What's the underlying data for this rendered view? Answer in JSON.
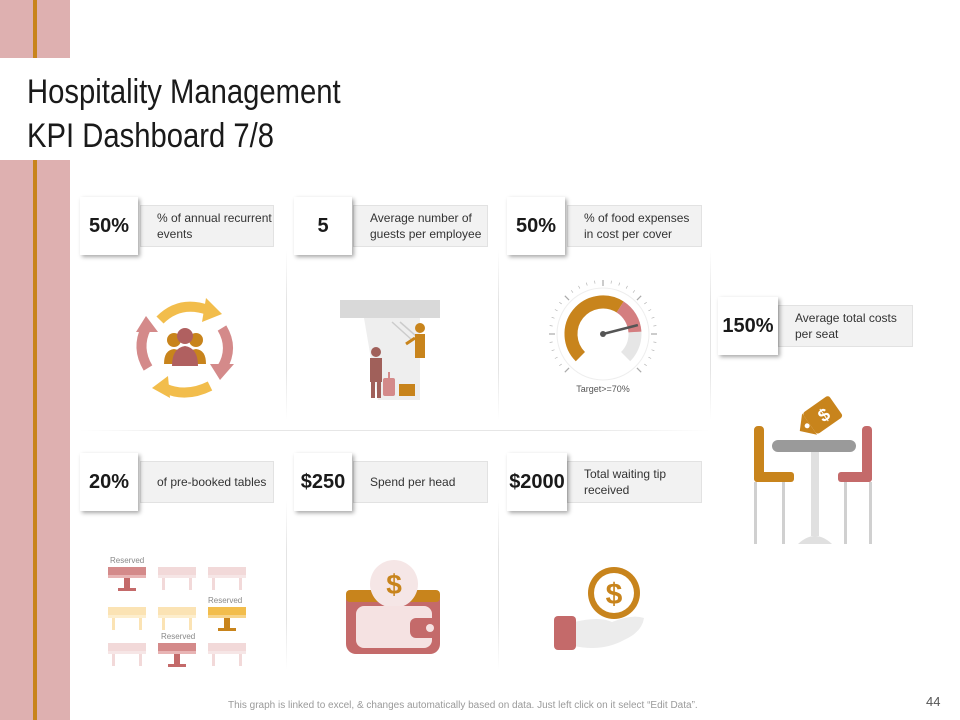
{
  "title_line1": "Hospitality Management",
  "title_line2": "KPI Dashboard 7/8",
  "kpis": [
    {
      "value": "50%",
      "label": "% of annual recurrent events"
    },
    {
      "value": "5",
      "label": "Average number of guests per employee"
    },
    {
      "value": "50%",
      "label": "% of food expenses in cost per cover"
    },
    {
      "value": "150%",
      "label": "Average total costs per seat"
    },
    {
      "value": "20%",
      "label": "of pre-booked tables"
    },
    {
      "value": "$250",
      "label": "Spend per head"
    },
    {
      "value": "$2000",
      "label": "Total waiting tip received"
    }
  ],
  "gauge": {
    "target_label": "Target>=70%",
    "value_fraction": 0.5
  },
  "reserved_label": "Reserved",
  "footer_note": "This graph is linked to excel, & changes automatically based on data. Just left click on it select “Edit Data”.",
  "page_number": "44",
  "colors": {
    "pink": "#deb0b0",
    "gold": "#c8841c",
    "yellow": "#f2bd4c",
    "rose": "#c46a6a",
    "grey": "#d9d9d9"
  }
}
